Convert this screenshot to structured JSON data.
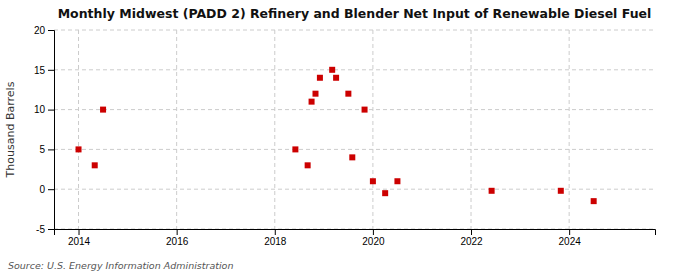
{
  "chart_data": {
    "type": "scatter",
    "title": "Monthly Midwest (PADD 2) Refinery and Blender Net Input of Renewable Diesel Fuel",
    "y_label": "Thousand Barrels",
    "source": "Source: U.S. Energy Information Administration",
    "x": [
      2014.0,
      2014.33,
      2014.5,
      2018.42,
      2018.67,
      2018.75,
      2018.83,
      2018.92,
      2019.17,
      2019.25,
      2019.5,
      2019.58,
      2019.83,
      2020.0,
      2020.25,
      2020.5,
      2022.42,
      2023.83,
      2024.5
    ],
    "values": [
      5,
      3,
      10,
      5,
      3,
      11,
      12,
      14,
      15,
      14,
      12,
      4,
      10,
      1,
      -0.5,
      1,
      -0.2,
      -0.2,
      -1.5
    ],
    "color": "#cc0000",
    "marker": "square",
    "xlim": [
      2013.5,
      2025.75
    ],
    "ylim": [
      -5,
      20
    ],
    "xticks": [
      2014,
      2016,
      2018,
      2020,
      2022,
      2024
    ],
    "yticks": [
      -5,
      0,
      5,
      10,
      15,
      20
    ],
    "grid": true
  }
}
